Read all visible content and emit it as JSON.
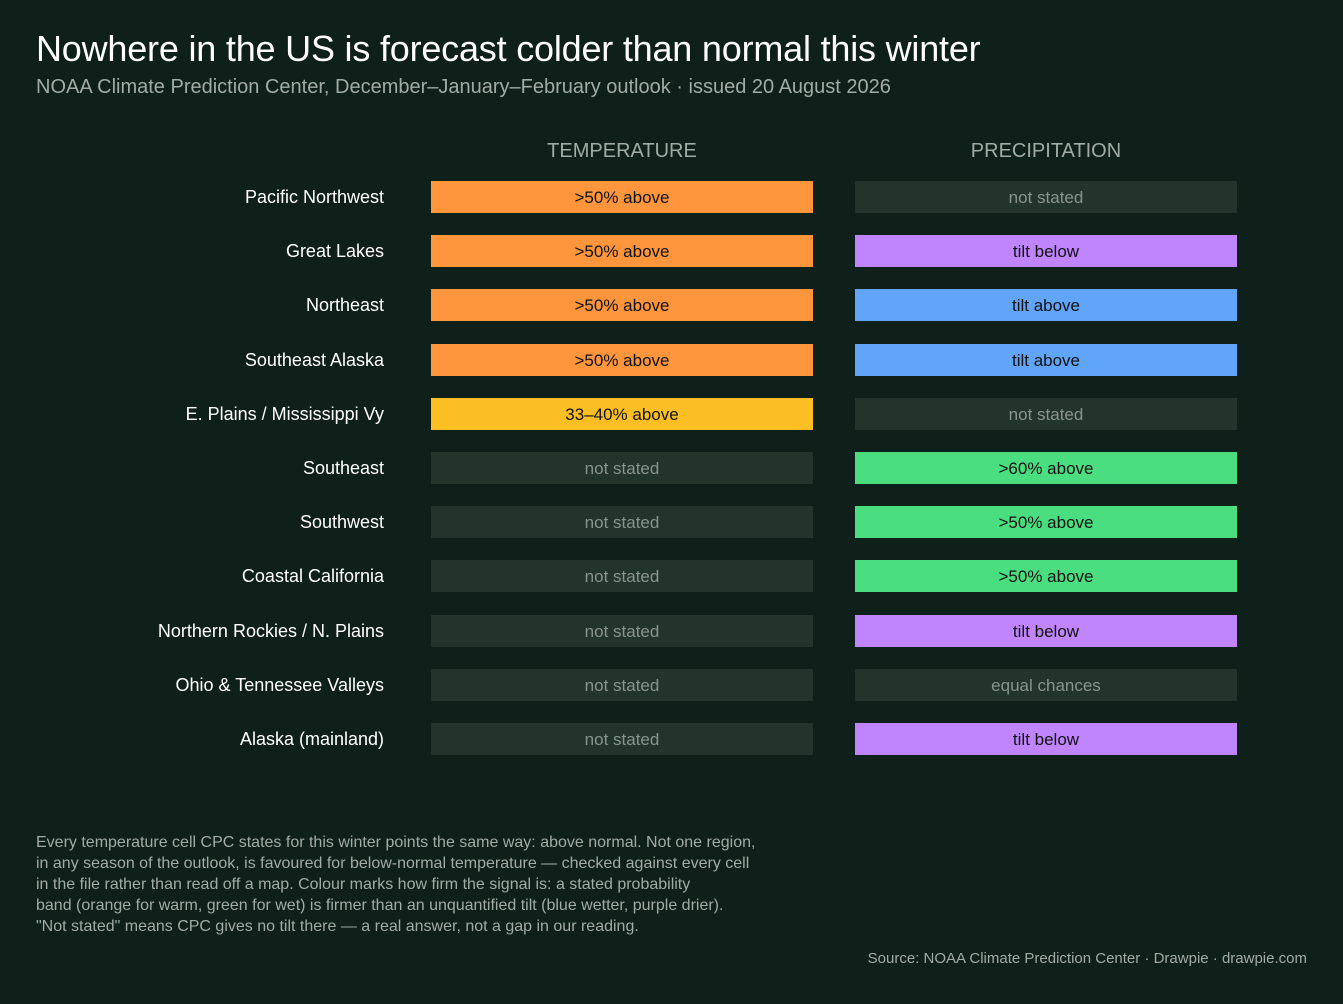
{
  "header": {
    "title": "Nowhere in the US is forecast colder than normal this winter",
    "subtitle": "NOAA Climate Prediction Center, December–January–February outlook  ·  issued 20 August 2026"
  },
  "colors": {
    "background": "#0f1f19",
    "warm_band": "#fd953d",
    "warm_weak_band": "#fbbf24",
    "wet_band": "#4ade80",
    "tilt_wetter": "#60a5fa",
    "tilt_drier": "#c084fc",
    "not_stated": "#22342c"
  },
  "chart_data": {
    "type": "table",
    "columns": [
      "TEMPERATURE",
      "PRECIPITATION"
    ],
    "rows": [
      {
        "region": "Pacific Northwest",
        "temperature": ">50% above",
        "temperature_class": "warm_band",
        "precipitation": "not stated",
        "precipitation_class": "not_stated"
      },
      {
        "region": "Great Lakes",
        "temperature": ">50% above",
        "temperature_class": "warm_band",
        "precipitation": "tilt below",
        "precipitation_class": "tilt_drier"
      },
      {
        "region": "Northeast",
        "temperature": ">50% above",
        "temperature_class": "warm_band",
        "precipitation": "tilt above",
        "precipitation_class": "tilt_wetter"
      },
      {
        "region": "Southeast Alaska",
        "temperature": ">50% above",
        "temperature_class": "warm_band",
        "precipitation": "tilt above",
        "precipitation_class": "tilt_wetter"
      },
      {
        "region": "E. Plains / Mississippi Vy",
        "temperature": "33–40% above",
        "temperature_class": "warm_weak_band",
        "precipitation": "not stated",
        "precipitation_class": "not_stated"
      },
      {
        "region": "Southeast",
        "temperature": "not stated",
        "temperature_class": "not_stated",
        "precipitation": ">60% above",
        "precipitation_class": "wet_band"
      },
      {
        "region": "Southwest",
        "temperature": "not stated",
        "temperature_class": "not_stated",
        "precipitation": ">50% above",
        "precipitation_class": "wet_band"
      },
      {
        "region": "Coastal California",
        "temperature": "not stated",
        "temperature_class": "not_stated",
        "precipitation": ">50% above",
        "precipitation_class": "wet_band"
      },
      {
        "region": "Northern Rockies / N. Plains",
        "temperature": "not stated",
        "temperature_class": "not_stated",
        "precipitation": "tilt below",
        "precipitation_class": "tilt_drier"
      },
      {
        "region": "Ohio & Tennessee Valleys",
        "temperature": "not stated",
        "temperature_class": "not_stated",
        "precipitation": "equal chances",
        "precipitation_class": "not_stated"
      },
      {
        "region": "Alaska (mainland)",
        "temperature": "not stated",
        "temperature_class": "not_stated",
        "precipitation": "tilt below",
        "precipitation_class": "tilt_drier"
      }
    ]
  },
  "note": {
    "lines": [
      "Every temperature cell CPC states for this winter points the same way: above normal. Not one region,",
      "in any season of the outlook, is favoured for below-normal temperature — checked against every cell",
      "in the file rather than read off a map. Colour marks how firm the signal is: a stated probability",
      "band (orange for warm, green for wet) is firmer than an unquantified tilt (blue wetter, purple drier).",
      "\"Not stated\" means CPC gives no tilt there — a real answer, not a gap in our reading."
    ]
  },
  "footer": {
    "source": "Source: NOAA Climate Prediction Center  ·  Drawpie · drawpie.com"
  }
}
